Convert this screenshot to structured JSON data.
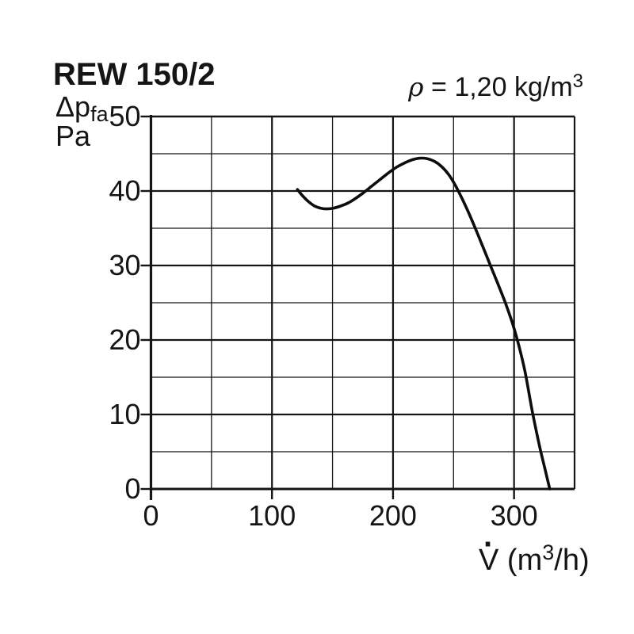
{
  "header": {
    "title": "REW 150/2",
    "density": {
      "rho": "ρ",
      "eq": " = ",
      "value": "1,20",
      "unit_prefix": " kg/m",
      "unit_sup": "3"
    }
  },
  "y_axis": {
    "quantity": "Δp",
    "quantity_sub": "fa",
    "unit": "Pa",
    "tick_labels": [
      "50",
      "40",
      "30",
      "20",
      "10",
      "0"
    ],
    "tick_values": [
      50,
      40,
      30,
      20,
      10,
      0
    ]
  },
  "x_axis": {
    "tick_labels": [
      "0",
      "100",
      "200",
      "300"
    ],
    "tick_values": [
      0,
      100,
      200,
      300
    ],
    "label": {
      "symbol": "V",
      "dot": "·",
      "prefix": " (m",
      "sup": "3",
      "suffix": "/h)"
    }
  },
  "chart_data": {
    "type": "line",
    "title": "REW 150/2",
    "subtitle": "ρ = 1,20 kg/m³",
    "xlabel": "V̇ (m³/h)",
    "ylabel": "Δp_fa (Pa)",
    "xlim": [
      0,
      350
    ],
    "ylim": [
      0,
      50
    ],
    "x_major_step": 100,
    "x_minor_step": 50,
    "y_major_step": 10,
    "y_minor_step": 5,
    "grid": true,
    "legend": "none",
    "ink_color": "#151515",
    "series": [
      {
        "name": "fan-curve",
        "color": "#0d0d0d",
        "points": [
          [
            121,
            40.2
          ],
          [
            125,
            39.4
          ],
          [
            130,
            38.6
          ],
          [
            135,
            38.0
          ],
          [
            140,
            37.7
          ],
          [
            145,
            37.6
          ],
          [
            151,
            37.7
          ],
          [
            157,
            38.0
          ],
          [
            163,
            38.4
          ],
          [
            169,
            39.0
          ],
          [
            175,
            39.7
          ],
          [
            182,
            40.6
          ],
          [
            189,
            41.5
          ],
          [
            196,
            42.4
          ],
          [
            203,
            43.2
          ],
          [
            210,
            43.8
          ],
          [
            216,
            44.2
          ],
          [
            222,
            44.4
          ],
          [
            228,
            44.35
          ],
          [
            234,
            44.0
          ],
          [
            240,
            43.3
          ],
          [
            246,
            42.2
          ],
          [
            251,
            40.9
          ],
          [
            257,
            39.0
          ],
          [
            263,
            36.9
          ],
          [
            269,
            34.6
          ],
          [
            275,
            32.2
          ],
          [
            281,
            29.8
          ],
          [
            287,
            27.4
          ],
          [
            293,
            24.9
          ],
          [
            299,
            22.1
          ],
          [
            304,
            19.2
          ],
          [
            309,
            15.8
          ],
          [
            315,
            10.5
          ],
          [
            321,
            5.8
          ],
          [
            326,
            2.4
          ],
          [
            329.5,
            0.0
          ]
        ]
      }
    ]
  }
}
